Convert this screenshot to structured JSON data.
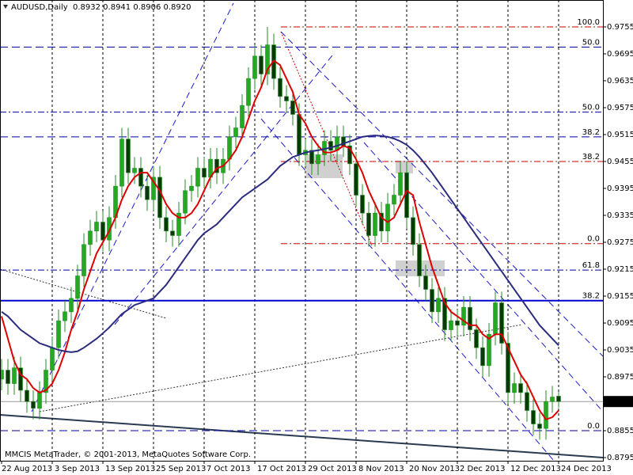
{
  "chart_data": {
    "type": "candlestick",
    "title": "AUDUSD,Daily",
    "ohlc_text": "0.8932 0.8941 0.8906 0.8920",
    "footer": "MMCIS MetaTrader, © 2001-2013, MetaQuotes Software Corp.",
    "categories": [
      "22 Aug 2013",
      null,
      null,
      null,
      null,
      null,
      null,
      null,
      "3 Sep 2013",
      null,
      null,
      null,
      null,
      null,
      null,
      null,
      "13 Sep 2013",
      null,
      null,
      null,
      null,
      null,
      null,
      null,
      "25 Sep 2013",
      null,
      null,
      null,
      null,
      null,
      null,
      null,
      "7 Oct 2013",
      null,
      null,
      null,
      null,
      null,
      null,
      null,
      "17 Oct 2013",
      null,
      null,
      null,
      null,
      null,
      null,
      null,
      "29 Oct 2013",
      null,
      null,
      null,
      null,
      null,
      null,
      null,
      "8 Nov 2013",
      null,
      null,
      null,
      null,
      null,
      null,
      null,
      "20 Nov 2013",
      null,
      null,
      null,
      null,
      null,
      null,
      null,
      "2 Dec 2013",
      null,
      null,
      null,
      null,
      null,
      null,
      null,
      "12 Dec 2013",
      null,
      null,
      null,
      null,
      null,
      null,
      null,
      "24 Dec 2013"
    ],
    "open": [
      0.897,
      0.899,
      0.896,
      0.8995,
      0.8945,
      0.892,
      0.8905,
      0.894,
      0.899,
      0.904,
      0.91,
      0.912,
      0.915,
      0.92,
      0.927,
      0.93,
      0.932,
      0.928,
      0.933,
      0.94,
      0.9505,
      0.943,
      0.944,
      0.94,
      0.937,
      0.942,
      0.933,
      0.93,
      0.929,
      0.934,
      0.939,
      0.94,
      0.944,
      0.942,
      0.946,
      0.943,
      0.946,
      0.951,
      0.953,
      0.958,
      0.964,
      0.969,
      0.965,
      0.9715,
      0.964,
      0.96,
      0.959,
      0.956,
      0.947,
      0.948,
      0.945,
      0.947,
      0.95,
      0.948,
      0.951,
      0.949,
      0.945,
      0.938,
      0.934,
      0.929,
      0.934,
      0.93,
      0.936,
      0.938,
      0.943,
      0.933,
      0.927,
      0.92,
      0.917,
      0.912,
      0.915,
      0.908,
      0.91,
      0.909,
      0.913,
      0.908,
      0.904,
      0.9,
      0.907,
      0.914,
      0.905,
      0.894,
      0.896,
      0.894,
      0.89,
      0.887,
      0.886,
      0.892,
      0.8932
    ],
    "high": [
      0.9015,
      0.9015,
      0.902,
      0.902,
      0.897,
      0.8945,
      0.8965,
      0.9015,
      0.9065,
      0.9125,
      0.9145,
      0.9175,
      0.9225,
      0.9295,
      0.9325,
      0.9345,
      0.9345,
      0.9355,
      0.9425,
      0.953,
      0.953,
      0.9465,
      0.9465,
      0.9425,
      0.9445,
      0.9445,
      0.9355,
      0.9325,
      0.9365,
      0.9415,
      0.9425,
      0.9465,
      0.9465,
      0.9485,
      0.9485,
      0.9485,
      0.9535,
      0.9555,
      0.9605,
      0.9665,
      0.9715,
      0.9715,
      0.9755,
      0.974,
      0.9665,
      0.9625,
      0.9615,
      0.9585,
      0.9505,
      0.9505,
      0.9495,
      0.9525,
      0.9525,
      0.9535,
      0.9535,
      0.9515,
      0.9475,
      0.9405,
      0.9365,
      0.9365,
      0.9365,
      0.9385,
      0.9405,
      0.9455,
      0.9455,
      0.9355,
      0.9295,
      0.9225,
      0.9195,
      0.9175,
      0.9175,
      0.9125,
      0.9125,
      0.9155,
      0.9155,
      0.9105,
      0.9065,
      0.9095,
      0.9165,
      0.9165,
      0.9075,
      0.8985,
      0.8985,
      0.8965,
      0.8925,
      0.8895,
      0.8945,
      0.8955,
      0.8941
    ],
    "low": [
      0.8945,
      0.8935,
      0.8935,
      0.892,
      0.8895,
      0.888,
      0.888,
      0.8915,
      0.8965,
      0.9015,
      0.9075,
      0.9095,
      0.9125,
      0.9175,
      0.9245,
      0.9275,
      0.9255,
      0.9255,
      0.9305,
      0.9375,
      0.9405,
      0.9405,
      0.9375,
      0.9345,
      0.9345,
      0.9305,
      0.9275,
      0.9265,
      0.9265,
      0.9315,
      0.9365,
      0.9375,
      0.9395,
      0.9395,
      0.9405,
      0.9405,
      0.9435,
      0.9485,
      0.9505,
      0.9555,
      0.9615,
      0.9625,
      0.9625,
      0.9615,
      0.9575,
      0.9565,
      0.9535,
      0.9445,
      0.9445,
      0.9425,
      0.9425,
      0.9445,
      0.9455,
      0.9455,
      0.9465,
      0.9425,
      0.9355,
      0.9315,
      0.9265,
      0.9265,
      0.9275,
      0.9275,
      0.9335,
      0.9355,
      0.9305,
      0.9245,
      0.9175,
      0.9145,
      0.9095,
      0.9095,
      0.9055,
      0.9055,
      0.9065,
      0.9065,
      0.9055,
      0.9015,
      0.8975,
      0.8975,
      0.9045,
      0.9025,
      0.8915,
      0.8915,
      0.8915,
      0.8875,
      0.8845,
      0.8835,
      0.8835,
      0.8895,
      0.8906
    ],
    "close": [
      0.899,
      0.896,
      0.8995,
      0.8945,
      0.892,
      0.8905,
      0.894,
      0.899,
      0.904,
      0.91,
      0.912,
      0.915,
      0.92,
      0.927,
      0.93,
      0.932,
      0.928,
      0.933,
      0.94,
      0.9505,
      0.943,
      0.944,
      0.94,
      0.937,
      0.942,
      0.933,
      0.93,
      0.929,
      0.934,
      0.939,
      0.94,
      0.944,
      0.942,
      0.946,
      0.943,
      0.946,
      0.951,
      0.953,
      0.958,
      0.964,
      0.969,
      0.965,
      0.9715,
      0.964,
      0.96,
      0.959,
      0.956,
      0.947,
      0.948,
      0.945,
      0.947,
      0.95,
      0.948,
      0.951,
      0.949,
      0.945,
      0.938,
      0.934,
      0.929,
      0.934,
      0.93,
      0.936,
      0.938,
      0.943,
      0.933,
      0.927,
      0.92,
      0.917,
      0.912,
      0.915,
      0.908,
      0.91,
      0.909,
      0.913,
      0.908,
      0.904,
      0.9,
      0.907,
      0.914,
      0.905,
      0.894,
      0.896,
      0.894,
      0.89,
      0.887,
      0.886,
      0.892,
      0.893,
      0.892
    ],
    "up_color": "#22aa22",
    "down_color": "#0a3a0a",
    "wick_color": "#1f8f1f",
    "lines": [
      {
        "color": "#dd0000",
        "values": [
          0.911,
          0.906,
          0.901,
          0.898,
          0.897,
          0.895,
          0.894,
          0.8945,
          0.896,
          0.899,
          0.903,
          0.908,
          0.912,
          0.917,
          0.921,
          0.925,
          0.9275,
          0.93,
          0.933,
          0.937,
          0.94,
          0.942,
          0.943,
          0.943,
          0.941,
          0.939,
          0.936,
          0.934,
          0.933,
          0.933,
          0.934,
          0.936,
          0.939,
          0.942,
          0.944,
          0.9445,
          0.946,
          0.948,
          0.951,
          0.955,
          0.959,
          0.962,
          0.966,
          0.968,
          0.967,
          0.964,
          0.961,
          0.956,
          0.954,
          0.951,
          0.949,
          0.9475,
          0.9475,
          0.948,
          0.949,
          0.9485,
          0.946,
          0.943,
          0.939,
          0.936,
          0.933,
          0.932,
          0.933,
          0.936,
          0.939,
          0.938,
          0.932,
          0.927,
          0.922,
          0.918,
          0.914,
          0.912,
          0.911,
          0.91,
          0.909,
          0.909,
          0.907,
          0.906,
          0.907,
          0.907,
          0.904,
          0.901,
          0.898,
          0.896,
          0.893,
          0.89,
          0.888,
          0.8885,
          0.89
        ]
      },
      {
        "color": "#2b2b80",
        "values": [
          0.912,
          0.911,
          0.9095,
          0.908,
          0.907,
          0.906,
          0.905,
          0.9045,
          0.904,
          0.9035,
          0.9032,
          0.903,
          0.9032,
          0.904,
          0.905,
          0.906,
          0.9072,
          0.9085,
          0.91,
          0.9115,
          0.9125,
          0.9135,
          0.914,
          0.9145,
          0.915,
          0.9165,
          0.918,
          0.92,
          0.922,
          0.924,
          0.926,
          0.928,
          0.9295,
          0.9305,
          0.9315,
          0.933,
          0.9345,
          0.936,
          0.9375,
          0.9385,
          0.9395,
          0.9405,
          0.9415,
          0.943,
          0.9445,
          0.9455,
          0.9465,
          0.947,
          0.9475,
          0.9478,
          0.948,
          0.9483,
          0.9486,
          0.949,
          0.9495,
          0.95,
          0.9505,
          0.951,
          0.9512,
          0.9513,
          0.9512,
          0.951,
          0.9506,
          0.95,
          0.9492,
          0.948,
          0.9465,
          0.9448,
          0.943,
          0.941,
          0.939,
          0.937,
          0.935,
          0.933,
          0.931,
          0.929,
          0.927,
          0.925,
          0.923,
          0.921,
          0.919,
          0.917,
          0.915,
          0.913,
          0.911,
          0.909,
          0.9075,
          0.906,
          0.9045
        ]
      }
    ],
    "levels": [
      {
        "label": "100.0",
        "value": 0.9755,
        "color": "#cc0000",
        "style": "dashdot"
      },
      {
        "label": "50.0",
        "value": 0.971,
        "color": "#0000aa",
        "style": "dashed"
      },
      {
        "label": "50.0",
        "value": 0.9565,
        "color": "#0000aa",
        "style": "dashdot"
      },
      {
        "label": "38.2",
        "value": 0.951,
        "color": "#0000aa",
        "style": "dashed"
      },
      {
        "label": "38.2",
        "value": 0.9455,
        "color": "#cc0000",
        "style": "dashdot"
      },
      {
        "label": "0.0",
        "value": 0.9272,
        "color": "#cc0000",
        "style": "dashdot"
      },
      {
        "label": "61.8",
        "value": 0.9213,
        "color": "#0000aa",
        "style": "dashdot"
      },
      {
        "label": "38.2",
        "value": 0.9145,
        "color": "#0000cc",
        "style": "solid"
      },
      {
        "label": "0.0",
        "value": 0.8855,
        "color": "#0000aa",
        "style": "dashed"
      }
    ],
    "current_price": {
      "value": 0.892,
      "label": "0.8920"
    },
    "ylim": [
      0.8788,
      0.9815
    ],
    "yticks": [
      0.9755,
      0.9695,
      0.9635,
      0.9575,
      0.9515,
      0.9455,
      0.9395,
      0.9335,
      0.9275,
      0.9215,
      0.9155,
      0.9095,
      0.9035,
      0.8975,
      0.8855,
      0.8795
    ]
  }
}
